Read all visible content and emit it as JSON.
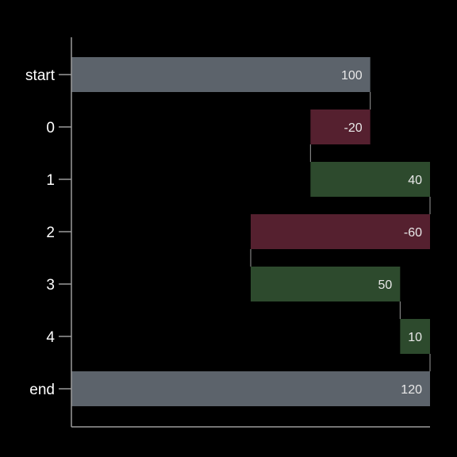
{
  "chart_data": {
    "type": "bar",
    "orientation": "horizontal",
    "subtype": "waterfall",
    "categories": [
      "start",
      "0",
      "1",
      "2",
      "3",
      "4",
      "end"
    ],
    "values": [
      100,
      -20,
      40,
      -60,
      50,
      10,
      120
    ],
    "kinds": [
      "total",
      "delta",
      "delta",
      "delta",
      "delta",
      "delta",
      "total"
    ],
    "data_labels": [
      "100",
      "-20",
      "40",
      "-60",
      "50",
      "10",
      "120"
    ],
    "xlim": [
      0,
      120
    ],
    "title": "",
    "xlabel": "",
    "ylabel": "",
    "grid": false,
    "legend": "none",
    "colors": {
      "background": "#000000",
      "total": "#5c636b",
      "increase": "#2d4a2d",
      "decrease": "#55202f",
      "axis": "#9a9a9a",
      "text": "#ffffff"
    }
  }
}
